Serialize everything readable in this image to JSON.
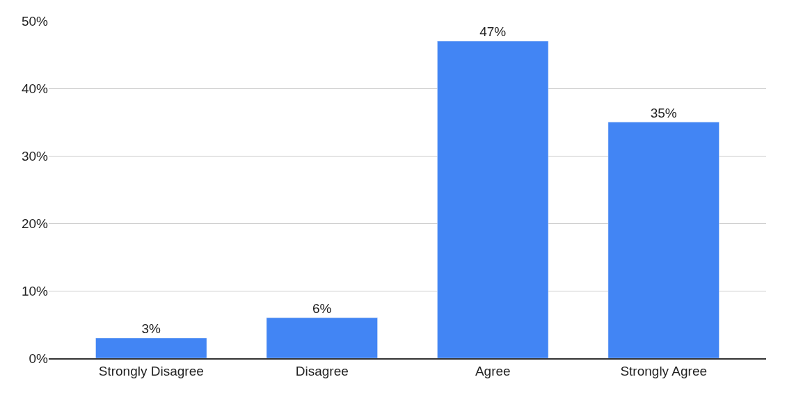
{
  "chart_data": {
    "type": "bar",
    "categories": [
      "Strongly Disagree",
      "Disagree",
      "Agree",
      "Strongly Agree"
    ],
    "values": [
      3,
      6,
      47,
      35
    ],
    "color": "#4285f4",
    "value_labels": [
      "3%",
      "6%",
      "47%",
      "35%"
    ],
    "ylim": [
      0,
      50
    ],
    "yticks": [
      {
        "value": 0,
        "label": "0%"
      },
      {
        "value": 10,
        "label": "10%"
      },
      {
        "value": 20,
        "label": "20%"
      },
      {
        "value": 30,
        "label": "30%"
      },
      {
        "value": 40,
        "label": "40%"
      },
      {
        "value": 50,
        "label": "50%"
      }
    ],
    "grid": "y"
  }
}
